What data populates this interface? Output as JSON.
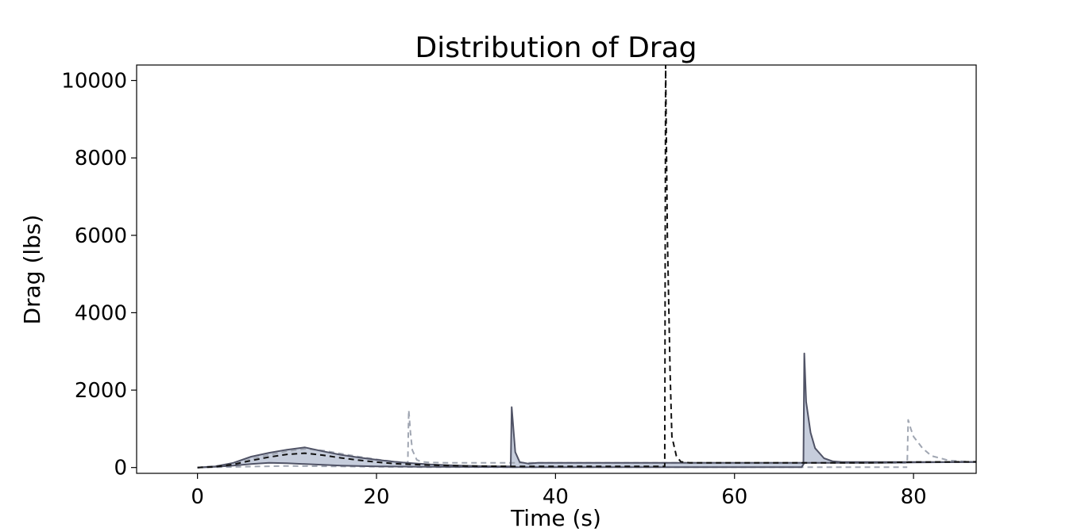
{
  "chart_data": {
    "type": "line",
    "title": "Distribution of Drag",
    "xlabel": "Time (s)",
    "ylabel": "Drag (lbs)",
    "xlim": [
      -6.8,
      87
    ],
    "ylim": [
      -150,
      10400
    ],
    "xticks": [
      0,
      20,
      40,
      60,
      80
    ],
    "yticks": [
      0,
      2000,
      4000,
      6000,
      8000,
      10000
    ],
    "grid": false,
    "legend": "none",
    "colors": {
      "band_fill": "#c6cddc",
      "band_edge": "#505366",
      "median": "#111111",
      "extreme": "#a0a6b2"
    },
    "series": [
      {
        "role": "band-upper",
        "x": [
          0,
          2,
          4,
          6,
          8,
          10,
          12,
          14,
          16,
          18,
          20,
          22,
          24,
          26,
          28,
          30,
          32,
          34,
          35,
          35.1,
          35.5,
          36,
          37,
          38,
          40,
          45,
          50,
          55,
          60,
          65,
          67.7,
          67.8,
          68,
          68.5,
          69,
          70,
          71,
          72,
          74,
          78,
          82,
          87
        ],
        "y": [
          0,
          30,
          120,
          280,
          380,
          460,
          520,
          420,
          330,
          260,
          200,
          150,
          110,
          80,
          60,
          45,
          35,
          30,
          30,
          1560,
          400,
          140,
          100,
          120,
          120,
          120,
          120,
          120,
          120,
          120,
          120,
          2950,
          1700,
          900,
          500,
          240,
          160,
          140,
          140,
          140,
          140,
          140
        ]
      },
      {
        "role": "band-lower",
        "x": [
          0,
          2,
          4,
          6,
          8,
          10,
          12,
          14,
          16,
          18,
          20,
          25,
          30,
          35,
          40,
          50,
          60,
          67.5,
          67.8,
          68,
          70,
          72,
          75,
          80,
          87
        ],
        "y": [
          0,
          20,
          50,
          90,
          120,
          110,
          90,
          70,
          50,
          40,
          30,
          20,
          15,
          10,
          10,
          10,
          10,
          10,
          120,
          120,
          120,
          120,
          120,
          130,
          140
        ]
      },
      {
        "role": "median",
        "x": [
          0,
          2,
          4,
          6,
          8,
          10,
          12,
          14,
          16,
          18,
          20,
          22,
          24,
          26,
          28,
          30,
          35,
          40,
          45,
          50,
          52.2,
          52.3,
          52.5,
          52.8,
          53,
          53.5,
          54,
          55,
          56,
          60,
          65,
          70,
          75,
          80,
          87
        ],
        "y": [
          0,
          20,
          80,
          180,
          270,
          340,
          370,
          320,
          250,
          190,
          140,
          100,
          80,
          60,
          50,
          40,
          30,
          30,
          30,
          30,
          30,
          10400,
          6000,
          2500,
          800,
          300,
          150,
          120,
          120,
          120,
          120,
          120,
          120,
          140,
          150
        ]
      },
      {
        "role": "extreme-low",
        "x": [
          0,
          5,
          10,
          15,
          20,
          25,
          30,
          40,
          50,
          60,
          70,
          79.3
        ],
        "y": [
          0,
          20,
          40,
          30,
          20,
          10,
          10,
          10,
          10,
          10,
          10,
          10
        ]
      },
      {
        "role": "extreme-high",
        "x": [
          0,
          4,
          6,
          8,
          10,
          12,
          14,
          16,
          18,
          20,
          22,
          23.5,
          23.6,
          23.8,
          24,
          24.5,
          25,
          26,
          28,
          30,
          35,
          40,
          50,
          60,
          70,
          79.3,
          79.4,
          79.7,
          80,
          81,
          82,
          84,
          87
        ],
        "y": [
          0,
          80,
          220,
          330,
          420,
          480,
          440,
          360,
          280,
          210,
          150,
          120,
          1480,
          900,
          450,
          200,
          150,
          130,
          120,
          120,
          120,
          120,
          120,
          120,
          120,
          120,
          1230,
          1000,
          800,
          500,
          300,
          180,
          140
        ]
      }
    ]
  }
}
